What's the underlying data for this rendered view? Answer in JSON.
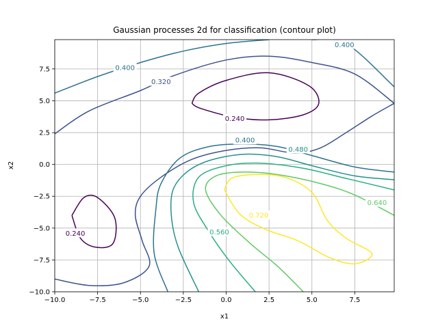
{
  "chart_data": {
    "type": "contour",
    "title": "Gaussian processes 2d for classification (contour plot)",
    "xlabel": "x1",
    "ylabel": "x2",
    "xlim": [
      -10,
      9.8
    ],
    "ylim": [
      -10,
      9.8
    ],
    "grid": true,
    "x_ticks": [
      -10,
      -7.5,
      -5,
      -2.5,
      0,
      2.5,
      5,
      7.5
    ],
    "x_tick_labels": [
      "−10.0",
      "−7.5",
      "−5.0",
      "−2.5",
      "0.0",
      "2.5",
      "5.0",
      "7.5"
    ],
    "y_ticks": [
      -10,
      -7.5,
      -5,
      -2.5,
      0,
      2.5,
      5,
      7.5
    ],
    "y_tick_labels": [
      "−10.0",
      "−7.5",
      "−5.0",
      "−2.5",
      "0.0",
      "2.5",
      "5.0",
      "7.5"
    ],
    "levels": [
      {
        "value": 0.24,
        "color": "#440154"
      },
      {
        "value": 0.32,
        "color": "#3b528b"
      },
      {
        "value": 0.4,
        "color": "#2c728e"
      },
      {
        "value": 0.48,
        "color": "#21918c"
      },
      {
        "value": 0.56,
        "color": "#28ae80"
      },
      {
        "value": 0.64,
        "color": "#5ec962"
      },
      {
        "value": 0.72,
        "color": "#fde725"
      }
    ],
    "contours": [
      {
        "level": 0.24,
        "color": "#440154",
        "points": [
          [
            -2,
            4.8
          ],
          [
            -1.6,
            5.6
          ],
          [
            0,
            6.6
          ],
          [
            2.5,
            7.2
          ],
          [
            4.8,
            6.2
          ],
          [
            5.4,
            4.8
          ],
          [
            4.5,
            3.9
          ],
          [
            2.5,
            3.5
          ],
          [
            0.5,
            3.7
          ],
          [
            -1.5,
            4.4
          ],
          [
            -2,
            4.8
          ]
        ]
      },
      {
        "level": 0.24,
        "color": "#440154",
        "points": [
          [
            -9,
            -4
          ],
          [
            -8.3,
            -2.6
          ],
          [
            -7.5,
            -2.6
          ],
          [
            -6.5,
            -4.2
          ],
          [
            -6.6,
            -6.2
          ],
          [
            -7.6,
            -6.5
          ],
          [
            -8.5,
            -5.8
          ],
          [
            -9,
            -4
          ]
        ]
      },
      {
        "level": 0.32,
        "color": "#3b528b",
        "points": [
          [
            -10,
            2.4
          ],
          [
            -8,
            4.2
          ],
          [
            -5,
            5.8
          ],
          [
            -3,
            7.0
          ],
          [
            0,
            8.2
          ],
          [
            2.5,
            8.5
          ],
          [
            5,
            8.0
          ],
          [
            7.5,
            7.1
          ],
          [
            9.8,
            4.8
          ]
        ]
      },
      {
        "level": 0.32,
        "color": "#3b528b",
        "points": [
          [
            -10,
            -9.0
          ],
          [
            -8,
            -9.5
          ],
          [
            -6,
            -9.3
          ],
          [
            -4.5,
            -8.0
          ],
          [
            -4.9,
            -6.0
          ],
          [
            -5.3,
            -4.0
          ],
          [
            -5.0,
            -2.5
          ],
          [
            -3.8,
            -1.0
          ],
          [
            -2,
            0.4
          ],
          [
            0,
            1.1
          ],
          [
            2,
            1.3
          ],
          [
            4,
            0.9
          ],
          [
            5.5,
            1.3
          ],
          [
            7,
            2.5
          ],
          [
            8.5,
            3.8
          ],
          [
            9.8,
            4.8
          ]
        ]
      },
      {
        "level": 0.4,
        "color": "#2c728e",
        "points": [
          [
            -10,
            5.6
          ],
          [
            -7.5,
            6.9
          ],
          [
            -5,
            8.0
          ],
          [
            -2.5,
            8.9
          ],
          [
            0,
            9.5
          ],
          [
            2.5,
            9.8
          ]
        ]
      },
      {
        "level": 0.4,
        "color": "#2c728e",
        "points": [
          [
            5,
            9.8
          ],
          [
            7,
            9.5
          ],
          [
            9.8,
            6.1
          ]
        ]
      },
      {
        "level": 0.4,
        "color": "#2c728e",
        "points": [
          [
            -3.4,
            -10
          ],
          [
            -4.2,
            -7.0
          ],
          [
            -4.1,
            -3.5
          ],
          [
            -3.8,
            -1.5
          ],
          [
            -2.7,
            0.5
          ],
          [
            -1,
            1.4
          ],
          [
            1,
            1.6
          ],
          [
            3,
            1.4
          ],
          [
            5,
            0.7
          ],
          [
            7.5,
            -0.2
          ],
          [
            9.8,
            -0.6
          ]
        ]
      },
      {
        "level": 0.48,
        "color": "#21918c",
        "points": [
          [
            -1.6,
            -10
          ],
          [
            -2.8,
            -6.5
          ],
          [
            -3.2,
            -4.0
          ],
          [
            -3.1,
            -2.0
          ],
          [
            -2.3,
            -0.6
          ],
          [
            -1,
            0.3
          ],
          [
            1,
            0.8
          ],
          [
            3,
            0.6
          ],
          [
            5,
            -0.1
          ],
          [
            7.5,
            -0.9
          ],
          [
            9.8,
            -1.2
          ]
        ]
      },
      {
        "level": 0.56,
        "color": "#28ae80",
        "points": [
          [
            1.7,
            -10
          ],
          [
            0.2,
            -7.6
          ],
          [
            -1.0,
            -5.3
          ],
          [
            -1.9,
            -3.0
          ],
          [
            -1.6,
            -1.0
          ],
          [
            0,
            -0.1
          ],
          [
            2,
            0.1
          ],
          [
            4.5,
            -0.3
          ],
          [
            7,
            -1.1
          ],
          [
            9.8,
            -2.0
          ]
        ]
      },
      {
        "level": 0.64,
        "color": "#5ec962",
        "points": [
          [
            4.5,
            -10
          ],
          [
            3.0,
            -8.0
          ],
          [
            1.4,
            -6.2
          ],
          [
            -0.3,
            -4.0
          ],
          [
            -1.2,
            -2.0
          ],
          [
            -0.6,
            -0.9
          ],
          [
            1,
            -0.6
          ],
          [
            3,
            -0.8
          ],
          [
            5.5,
            -1.5
          ],
          [
            7.5,
            -2.4
          ],
          [
            9.8,
            -4.0
          ]
        ]
      },
      {
        "level": 0.72,
        "color": "#fde725",
        "points": [
          [
            -0.1,
            -2.0
          ],
          [
            0.3,
            -1.1
          ],
          [
            1.6,
            -0.8
          ],
          [
            3.4,
            -1.0
          ],
          [
            5,
            -2.2
          ],
          [
            5.9,
            -4.4
          ],
          [
            7.0,
            -5.8
          ],
          [
            8.5,
            -7.0
          ],
          [
            7.5,
            -7.8
          ],
          [
            6,
            -7.3
          ],
          [
            4.2,
            -6.0
          ],
          [
            2.3,
            -5.1
          ],
          [
            0.8,
            -3.9
          ],
          [
            -0.1,
            -2.0
          ]
        ]
      }
    ],
    "contour_labels": [
      {
        "text": "0.400",
        "x": -5.9,
        "y": 7.6,
        "color": "#2c728e"
      },
      {
        "text": "0.320",
        "x": -3.8,
        "y": 6.5,
        "color": "#3b528b"
      },
      {
        "text": "0.400",
        "x": 6.9,
        "y": 9.4,
        "color": "#2c728e"
      },
      {
        "text": "0.240",
        "x": 0.5,
        "y": 3.6,
        "color": "#440154"
      },
      {
        "text": "0.400",
        "x": 1.1,
        "y": 1.9,
        "color": "#2c728e"
      },
      {
        "text": "0.480",
        "x": 4.2,
        "y": 1.2,
        "color": "#21918c"
      },
      {
        "text": "0.240",
        "x": -8.8,
        "y": -5.4,
        "color": "#440154"
      },
      {
        "text": "0.560",
        "x": -0.4,
        "y": -5.3,
        "color": "#28ae80"
      },
      {
        "text": "0.720",
        "x": 1.9,
        "y": -4.0,
        "color": "#fde725"
      },
      {
        "text": "0.640",
        "x": 8.8,
        "y": -3.0,
        "color": "#5ec962"
      }
    ]
  }
}
